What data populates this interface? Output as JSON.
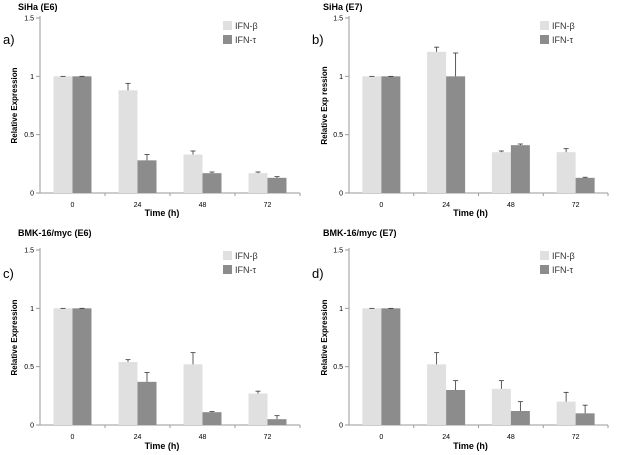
{
  "colors": {
    "ifn_beta": "#e0e0e0",
    "ifn_tau": "#8c8c8c",
    "axis": "#9a9a9a",
    "error_bar": "#333333"
  },
  "chart_data": [
    {
      "panel_label": "a)",
      "title": "SiHa (E6)",
      "type": "bar",
      "categories": [
        "0",
        "24",
        "48",
        "72"
      ],
      "ylabel": "Relative Expression",
      "xlabel": "Time (h)",
      "ylim": [
        0,
        1.5
      ],
      "yticks": [
        "0",
        "0.5",
        "1",
        "1.5"
      ],
      "legend_position": "top-right",
      "series": [
        {
          "name": "IFN-β",
          "values": [
            1.0,
            0.88,
            0.33,
            0.17
          ],
          "errors": [
            0.0,
            0.06,
            0.03,
            0.01
          ]
        },
        {
          "name": "IFN-τ",
          "values": [
            1.0,
            0.28,
            0.17,
            0.13
          ],
          "errors": [
            0.0,
            0.05,
            0.01,
            0.01
          ]
        }
      ]
    },
    {
      "panel_label": "b)",
      "title": "SiHa (E7)",
      "type": "bar",
      "categories": [
        "0",
        "24",
        "48",
        "72"
      ],
      "ylabel": "Relative Exp ression",
      "xlabel": "Time (h)",
      "ylim": [
        0,
        1.5
      ],
      "yticks": [
        "0",
        "0.5",
        "1",
        "1.5"
      ],
      "legend_position": "top-right",
      "series": [
        {
          "name": "IFN-β",
          "values": [
            1.0,
            1.21,
            0.35,
            0.35
          ],
          "errors": [
            0.0,
            0.04,
            0.01,
            0.03
          ]
        },
        {
          "name": "IFN-τ",
          "values": [
            1.0,
            1.0,
            0.41,
            0.13
          ],
          "errors": [
            0.0,
            0.2,
            0.01,
            0.005
          ]
        }
      ]
    },
    {
      "panel_label": "c)",
      "title": "BMK-16/myc (E6)",
      "type": "bar",
      "categories": [
        "0",
        "24",
        "48",
        "72"
      ],
      "ylabel": "Relative Expression",
      "xlabel": "Time (h)",
      "ylim": [
        0,
        1.5
      ],
      "yticks": [
        "0",
        "0.5",
        "1",
        "1.5"
      ],
      "legend_position": "top-right",
      "series": [
        {
          "name": "IFN-β",
          "values": [
            1.0,
            0.54,
            0.52,
            0.27
          ],
          "errors": [
            0.0,
            0.02,
            0.1,
            0.02
          ]
        },
        {
          "name": "IFN-τ",
          "values": [
            1.0,
            0.37,
            0.11,
            0.05
          ],
          "errors": [
            0.0,
            0.08,
            0.005,
            0.03
          ]
        }
      ]
    },
    {
      "panel_label": "d)",
      "title": "BMK-16/myc (E7)",
      "type": "bar",
      "categories": [
        "0",
        "24",
        "48",
        "72"
      ],
      "ylabel": "Relative Expression",
      "xlabel": "Time (h)",
      "ylim": [
        0,
        1.5
      ],
      "yticks": [
        "0",
        "0.5",
        "1",
        "1.5"
      ],
      "legend_position": "top-right",
      "series": [
        {
          "name": "IFN-β",
          "values": [
            1.0,
            0.52,
            0.31,
            0.2
          ],
          "errors": [
            0.0,
            0.1,
            0.07,
            0.08
          ]
        },
        {
          "name": "IFN-τ",
          "values": [
            1.0,
            0.3,
            0.12,
            0.1
          ],
          "errors": [
            0.0,
            0.08,
            0.08,
            0.07
          ]
        }
      ]
    }
  ]
}
